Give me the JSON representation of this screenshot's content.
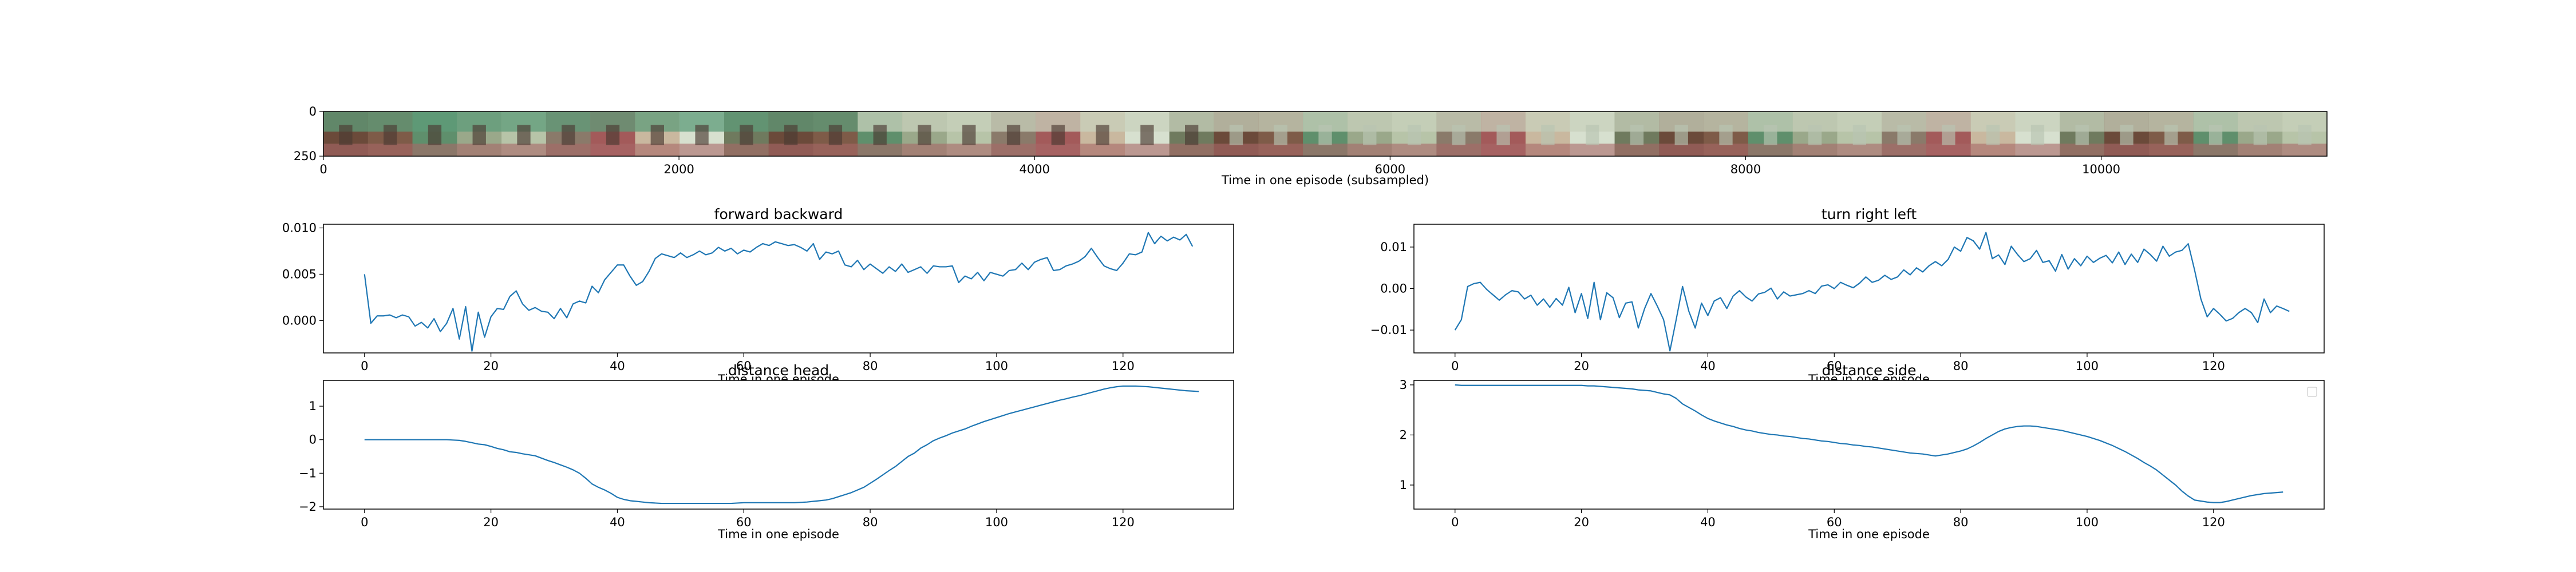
{
  "chart_data": [
    {
      "id": "frames",
      "type": "image-strip",
      "xlabel": "Time in one episode (subsampled)",
      "xlim": [
        0,
        11270
      ],
      "ylim": [
        250,
        0
      ],
      "xticks": [
        0,
        2000,
        4000,
        6000,
        8000,
        10000
      ],
      "yticks": [
        0,
        250
      ],
      "frame_count": 45
    },
    {
      "id": "forward_backward",
      "type": "line",
      "title": "forward backward",
      "xlabel": "Time in one episode",
      "xlim": [
        -6.5,
        137.5
      ],
      "ylim": [
        -0.0035,
        0.0104
      ],
      "xticks": [
        0,
        20,
        40,
        60,
        80,
        100,
        120
      ],
      "yticks": [
        0.0,
        0.005,
        0.01
      ],
      "ytick_labels": [
        "0.000",
        "0.005",
        "0.010"
      ],
      "series": [
        {
          "values": [
            0.005,
            -0.0003,
            0.0005,
            0.0005,
            0.0006,
            0.0003,
            0.0006,
            0.0004,
            -0.0006,
            -0.0002,
            -0.0008,
            0.0002,
            -0.0012,
            -0.0003,
            0.0013,
            -0.002,
            0.0015,
            -0.0033,
            0.0009,
            -0.0018,
            0.0004,
            0.0013,
            0.0012,
            0.0026,
            0.0032,
            0.0018,
            0.0011,
            0.0014,
            0.001,
            0.0009,
            0.0002,
            0.0013,
            0.0003,
            0.0018,
            0.0021,
            0.0019,
            0.0037,
            0.003,
            0.0044,
            0.0052,
            0.006,
            0.006,
            0.0048,
            0.0038,
            0.0042,
            0.0053,
            0.0067,
            0.0072,
            0.007,
            0.0068,
            0.0073,
            0.0068,
            0.0071,
            0.0075,
            0.0071,
            0.0073,
            0.0079,
            0.0075,
            0.0078,
            0.0072,
            0.0076,
            0.0074,
            0.0079,
            0.0083,
            0.0081,
            0.0085,
            0.0083,
            0.0081,
            0.0082,
            0.0079,
            0.0075,
            0.0083,
            0.0066,
            0.0074,
            0.0072,
            0.0075,
            0.006,
            0.0058,
            0.0065,
            0.0055,
            0.0061,
            0.0056,
            0.0051,
            0.0058,
            0.0053,
            0.0061,
            0.0052,
            0.0055,
            0.0058,
            0.0051,
            0.0059,
            0.0058,
            0.0058,
            0.0059,
            0.0041,
            0.0048,
            0.0045,
            0.0052,
            0.0043,
            0.0052,
            0.005,
            0.0048,
            0.0054,
            0.0055,
            0.0062,
            0.0055,
            0.0063,
            0.0066,
            0.0068,
            0.0054,
            0.0055,
            0.0059,
            0.0061,
            0.0064,
            0.0069,
            0.0078,
            0.0068,
            0.0059,
            0.0056,
            0.0054,
            0.0062,
            0.0072,
            0.0071,
            0.0074,
            0.0095,
            0.0083,
            0.0091,
            0.0086,
            0.009,
            0.0087,
            0.0093,
            0.008
          ]
        }
      ]
    },
    {
      "id": "turn_right_left",
      "type": "line",
      "title": "turn right left",
      "xlabel": "Time in one episode",
      "xlim": [
        -6.5,
        137.5
      ],
      "ylim": [
        -0.0155,
        0.0155
      ],
      "xticks": [
        0,
        20,
        40,
        60,
        80,
        100,
        120
      ],
      "yticks": [
        -0.01,
        0.0,
        0.01
      ],
      "ytick_labels": [
        "−0.01",
        "0.00",
        "0.01"
      ],
      "series": [
        {
          "values": [
            -0.01,
            -0.0075,
            0.0005,
            0.0012,
            0.0015,
            -0.0002,
            -0.0015,
            -0.0028,
            -0.0015,
            -0.0005,
            -0.0008,
            -0.0025,
            -0.0016,
            -0.004,
            -0.0025,
            -0.0045,
            -0.0024,
            -0.004,
            0.0003,
            -0.0058,
            -0.0012,
            -0.0072,
            0.0015,
            -0.0075,
            -0.001,
            -0.0022,
            -0.007,
            -0.0035,
            -0.0032,
            -0.0095,
            -0.0048,
            -0.0012,
            -0.0042,
            -0.0075,
            -0.015,
            -0.0074,
            0.0005,
            -0.0055,
            -0.0095,
            -0.0035,
            -0.0065,
            -0.003,
            -0.0022,
            -0.0048,
            -0.0018,
            -0.0005,
            -0.002,
            -0.003,
            -0.0013,
            -0.0009,
            0.0001,
            -0.0025,
            -0.0008,
            -0.0018,
            -0.0015,
            -0.0012,
            -0.0005,
            -0.0012,
            0.0006,
            0.0009,
            0.0,
            0.0015,
            0.0008,
            0.0002,
            0.0013,
            0.0028,
            0.0015,
            0.002,
            0.0032,
            0.0022,
            0.0028,
            0.0045,
            0.0033,
            0.005,
            0.004,
            0.0055,
            0.0065,
            0.0055,
            0.007,
            0.01,
            0.009,
            0.0123,
            0.0115,
            0.0095,
            0.0135,
            0.0072,
            0.0081,
            0.0058,
            0.0102,
            0.0082,
            0.0065,
            0.0072,
            0.0092,
            0.0063,
            0.0067,
            0.0042,
            0.0082,
            0.0047,
            0.0072,
            0.0055,
            0.0078,
            0.0063,
            0.0073,
            0.008,
            0.0062,
            0.0088,
            0.0058,
            0.0083,
            0.0063,
            0.0095,
            0.0082,
            0.0066,
            0.0102,
            0.0078,
            0.0088,
            0.0092,
            0.0108,
            0.0045,
            -0.0025,
            -0.0068,
            -0.0048,
            -0.0062,
            -0.0078,
            -0.0072,
            -0.0058,
            -0.0048,
            -0.0058,
            -0.0082,
            -0.0025,
            -0.0058,
            -0.0042,
            -0.0048,
            -0.0055
          ]
        }
      ]
    },
    {
      "id": "distance_head",
      "type": "line",
      "title": "distance head",
      "xlabel": "Time in one episode",
      "xlim": [
        -6.5,
        137.5
      ],
      "ylim": [
        -2.07,
        1.77
      ],
      "xticks": [
        0,
        20,
        40,
        60,
        80,
        100,
        120
      ],
      "yticks": [
        -2,
        -1,
        0,
        1
      ],
      "ytick_labels": [
        "−2",
        "−1",
        "0",
        "1"
      ],
      "series": [
        {
          "values": [
            0.0,
            0.0,
            0.0,
            0.0,
            0.0,
            0.0,
            0.0,
            0.0,
            0.0,
            0.0,
            0.0,
            0.0,
            0.0,
            0.0,
            -0.01,
            -0.02,
            -0.05,
            -0.09,
            -0.13,
            -0.15,
            -0.2,
            -0.26,
            -0.3,
            -0.36,
            -0.38,
            -0.42,
            -0.45,
            -0.48,
            -0.55,
            -0.62,
            -0.68,
            -0.75,
            -0.82,
            -0.9,
            -1.0,
            -1.15,
            -1.32,
            -1.42,
            -1.5,
            -1.6,
            -1.72,
            -1.78,
            -1.82,
            -1.84,
            -1.86,
            -1.88,
            -1.89,
            -1.9,
            -1.9,
            -1.9,
            -1.9,
            -1.9,
            -1.9,
            -1.9,
            -1.9,
            -1.9,
            -1.9,
            -1.9,
            -1.9,
            -1.89,
            -1.88,
            -1.88,
            -1.88,
            -1.88,
            -1.88,
            -1.88,
            -1.88,
            -1.88,
            -1.88,
            -1.87,
            -1.86,
            -1.84,
            -1.82,
            -1.8,
            -1.76,
            -1.7,
            -1.64,
            -1.58,
            -1.5,
            -1.42,
            -1.3,
            -1.18,
            -1.05,
            -0.92,
            -0.8,
            -0.65,
            -0.5,
            -0.4,
            -0.25,
            -0.15,
            -0.03,
            0.05,
            0.12,
            0.2,
            0.26,
            0.32,
            0.4,
            0.47,
            0.54,
            0.6,
            0.66,
            0.72,
            0.78,
            0.83,
            0.88,
            0.93,
            0.98,
            1.03,
            1.08,
            1.13,
            1.18,
            1.22,
            1.27,
            1.31,
            1.36,
            1.41,
            1.46,
            1.51,
            1.55,
            1.58,
            1.6,
            1.6,
            1.6,
            1.59,
            1.58,
            1.56,
            1.54,
            1.52,
            1.5,
            1.48,
            1.46,
            1.45,
            1.44
          ]
        }
      ]
    },
    {
      "id": "distance_side",
      "type": "line",
      "title": "distance side",
      "xlabel": "Time in one episode",
      "xlim": [
        -6.5,
        137.5
      ],
      "ylim": [
        0.52,
        3.09
      ],
      "xticks": [
        0,
        20,
        40,
        60,
        80,
        100,
        120
      ],
      "yticks": [
        1,
        2,
        3
      ],
      "ytick_labels": [
        "1",
        "2",
        "3"
      ],
      "series": [
        {
          "values": [
            3.0,
            2.99,
            2.99,
            2.99,
            2.99,
            2.99,
            2.99,
            2.99,
            2.99,
            2.99,
            2.99,
            2.99,
            2.99,
            2.99,
            2.99,
            2.99,
            2.99,
            2.99,
            2.99,
            2.99,
            2.99,
            2.98,
            2.98,
            2.97,
            2.96,
            2.95,
            2.94,
            2.93,
            2.92,
            2.9,
            2.89,
            2.88,
            2.85,
            2.82,
            2.8,
            2.73,
            2.62,
            2.55,
            2.48,
            2.4,
            2.33,
            2.28,
            2.24,
            2.2,
            2.17,
            2.13,
            2.1,
            2.08,
            2.05,
            2.03,
            2.01,
            2.0,
            1.98,
            1.97,
            1.95,
            1.93,
            1.92,
            1.9,
            1.88,
            1.87,
            1.85,
            1.83,
            1.82,
            1.8,
            1.79,
            1.77,
            1.76,
            1.74,
            1.72,
            1.7,
            1.68,
            1.66,
            1.64,
            1.63,
            1.62,
            1.6,
            1.58,
            1.6,
            1.62,
            1.65,
            1.68,
            1.72,
            1.78,
            1.85,
            1.93,
            2.0,
            2.07,
            2.12,
            2.15,
            2.17,
            2.18,
            2.18,
            2.17,
            2.15,
            2.13,
            2.11,
            2.09,
            2.06,
            2.03,
            2.0,
            1.97,
            1.93,
            1.89,
            1.84,
            1.79,
            1.73,
            1.67,
            1.6,
            1.53,
            1.45,
            1.38,
            1.3,
            1.2,
            1.1,
            1.0,
            0.88,
            0.78,
            0.7,
            0.68,
            0.66,
            0.65,
            0.65,
            0.67,
            0.7,
            0.73,
            0.76,
            0.79,
            0.81,
            0.83,
            0.84,
            0.85,
            0.86
          ]
        }
      ]
    }
  ],
  "colors": {
    "line": "#1f77b4",
    "axes": "#000000",
    "frame_palette": [
      "#6b4a3a",
      "#7e5b48",
      "#5f8f6c",
      "#9aa88a",
      "#b7c4a8",
      "#8a7a6a",
      "#a35a5a",
      "#c9b89f",
      "#d7e0cf",
      "#6f7a5e"
    ]
  }
}
